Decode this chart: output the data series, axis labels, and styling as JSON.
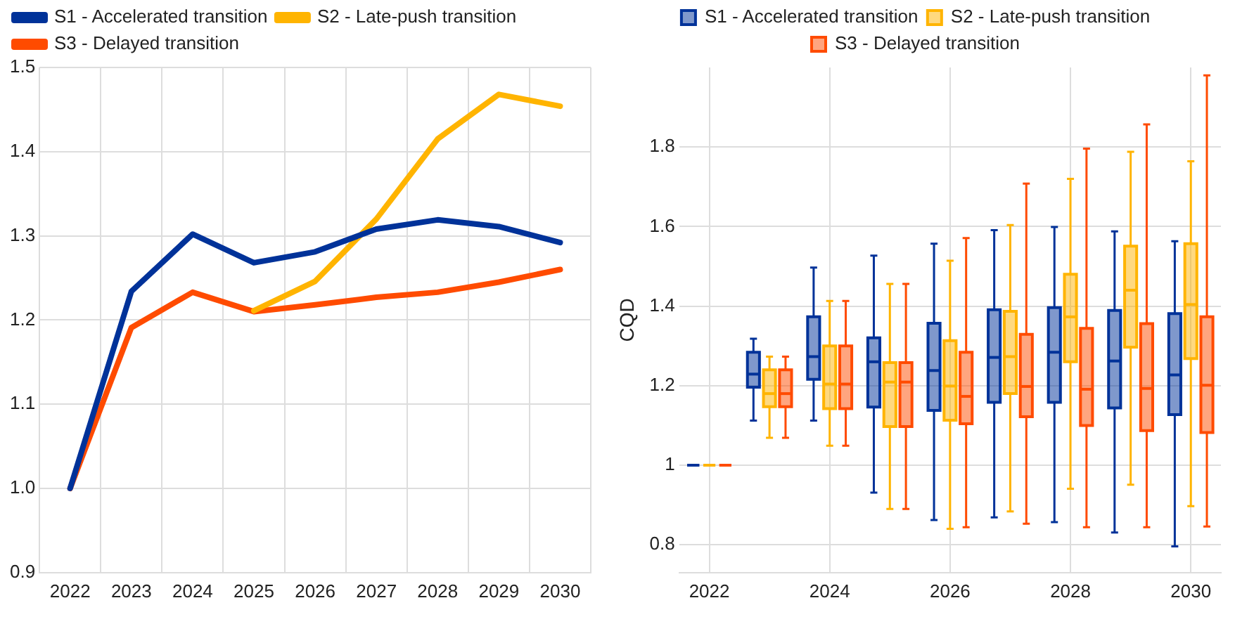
{
  "chart_data": [
    {
      "type": "line",
      "categories": [
        "2022",
        "2023",
        "2024",
        "2025",
        "2026",
        "2027",
        "2028",
        "2029",
        "2030"
      ],
      "series": [
        {
          "name": "S1 - Accelerated transition",
          "color": "#003299",
          "values": [
            1.0,
            1.234,
            1.302,
            1.268,
            1.281,
            1.308,
            1.319,
            1.311,
            1.292
          ]
        },
        {
          "name": "S2 - Late-push transition",
          "color": "#ffb400",
          "values": [
            null,
            null,
            null,
            1.211,
            1.246,
            1.32,
            1.415,
            1.468,
            1.454
          ]
        },
        {
          "name": "S3 - Delayed transition",
          "color": "#ff4b00",
          "values": [
            1.0,
            1.191,
            1.233,
            1.21,
            1.218,
            1.227,
            1.233,
            1.245,
            1.26
          ]
        }
      ],
      "ylim": [
        0.9,
        1.5
      ],
      "yticks": [
        0.9,
        {
          "value": 1,
          "label": "1.0"
        },
        1.1,
        1.2,
        1.3,
        1.4,
        1.5
      ],
      "grid": true,
      "legend": "top left"
    },
    {
      "type": "box",
      "categories": [
        "2022",
        null,
        "2024",
        null,
        "2026",
        null,
        "2028",
        null,
        "2030"
      ],
      "ylabel": "CQD",
      "series": [
        {
          "name": "S1 - Accelerated transition",
          "color": "#003299",
          "boxes": [
            {
              "low": 1,
              "q1": 1,
              "median": 1,
              "q3": 1,
              "high": 1
            },
            {
              "low": 1.112,
              "q1": 1.196,
              "median": 1.229,
              "q3": 1.284,
              "high": 1.318
            },
            {
              "low": 1.112,
              "q1": 1.216,
              "median": 1.273,
              "q3": 1.373,
              "high": 1.497
            },
            {
              "low": 0.931,
              "q1": 1.146,
              "median": 1.26,
              "q3": 1.32,
              "high": 1.527
            },
            {
              "low": 0.862,
              "q1": 1.138,
              "median": 1.238,
              "q3": 1.357,
              "high": 1.557
            },
            {
              "low": 0.869,
              "q1": 1.158,
              "median": 1.271,
              "q3": 1.391,
              "high": 1.591
            },
            {
              "low": 0.857,
              "q1": 1.158,
              "median": 1.284,
              "q3": 1.396,
              "high": 1.599
            },
            {
              "low": 0.831,
              "q1": 1.144,
              "median": 1.262,
              "q3": 1.389,
              "high": 1.588
            },
            {
              "low": 0.796,
              "q1": 1.127,
              "median": 1.227,
              "q3": 1.381,
              "high": 1.563
            }
          ]
        },
        {
          "name": "S2 - Late-push transition",
          "color": "#ffb400",
          "boxes": [
            {
              "low": 1,
              "q1": 1,
              "median": 1,
              "q3": 1,
              "high": 1
            },
            {
              "low": 1.069,
              "q1": 1.147,
              "median": 1.18,
              "q3": 1.24,
              "high": 1.273
            },
            {
              "low": 1.049,
              "q1": 1.142,
              "median": 1.204,
              "q3": 1.3,
              "high": 1.413
            },
            {
              "low": 0.89,
              "q1": 1.097,
              "median": 1.209,
              "q3": 1.258,
              "high": 1.456
            },
            {
              "low": 0.84,
              "q1": 1.113,
              "median": 1.199,
              "q3": 1.313,
              "high": 1.514
            },
            {
              "low": 0.884,
              "q1": 1.18,
              "median": 1.273,
              "q3": 1.387,
              "high": 1.604
            },
            {
              "low": 0.941,
              "q1": 1.26,
              "median": 1.373,
              "q3": 1.48,
              "high": 1.72
            },
            {
              "low": 0.951,
              "q1": 1.297,
              "median": 1.44,
              "q3": 1.551,
              "high": 1.788
            },
            {
              "low": 0.897,
              "q1": 1.268,
              "median": 1.404,
              "q3": 1.557,
              "high": 1.764
            }
          ]
        },
        {
          "name": "S3 - Delayed transition",
          "color": "#ff4b00",
          "boxes": [
            {
              "low": 1,
              "q1": 1,
              "median": 1,
              "q3": 1,
              "high": 1
            },
            {
              "low": 1.069,
              "q1": 1.147,
              "median": 1.18,
              "q3": 1.24,
              "high": 1.273
            },
            {
              "low": 1.049,
              "q1": 1.142,
              "median": 1.204,
              "q3": 1.3,
              "high": 1.413
            },
            {
              "low": 0.89,
              "q1": 1.097,
              "median": 1.209,
              "q3": 1.258,
              "high": 1.456
            },
            {
              "low": 0.844,
              "q1": 1.104,
              "median": 1.173,
              "q3": 1.284,
              "high": 1.571
            },
            {
              "low": 0.853,
              "q1": 1.122,
              "median": 1.198,
              "q3": 1.329,
              "high": 1.708
            },
            {
              "low": 0.844,
              "q1": 1.1,
              "median": 1.191,
              "q3": 1.344,
              "high": 1.796
            },
            {
              "low": 0.844,
              "q1": 1.087,
              "median": 1.193,
              "q3": 1.356,
              "high": 1.857
            },
            {
              "low": 0.846,
              "q1": 1.082,
              "median": 1.201,
              "q3": 1.373,
              "high": 1.98
            }
          ]
        }
      ],
      "ylim": [
        0.73,
        2.0
      ],
      "yticks": [
        0.8,
        1,
        1.2,
        1.4,
        1.6,
        1.8
      ],
      "grid": true,
      "legend": "top"
    }
  ]
}
